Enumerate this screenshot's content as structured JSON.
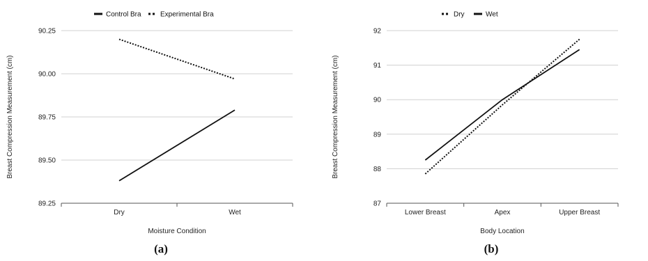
{
  "chart_data": [
    {
      "type": "line",
      "panel_label": "(a)",
      "categories": [
        "Dry",
        "Wet"
      ],
      "series": [
        {
          "name": "Control Bra",
          "values": [
            89.38,
            89.79
          ],
          "style": "solid"
        },
        {
          "name": "Experimental Bra",
          "values": [
            90.2,
            89.97
          ],
          "style": "dotted"
        }
      ],
      "xlabel": "Moisture Condition",
      "ylabel": "Breast Compression Measurement (cm)",
      "ylim": [
        89.25,
        90.25
      ],
      "yticks": [
        "89.25",
        "89.50",
        "89.75",
        "90.00",
        "90.25"
      ],
      "grid": true,
      "legend": "top"
    },
    {
      "type": "line",
      "panel_label": "(b)",
      "categories": [
        "Lower Breast",
        "Apex",
        "Upper Breast"
      ],
      "series": [
        {
          "name": "Dry",
          "values": [
            87.85,
            89.85,
            91.75
          ],
          "style": "dotted"
        },
        {
          "name": "Wet",
          "values": [
            88.25,
            90.0,
            91.45
          ],
          "style": "solid"
        }
      ],
      "xlabel": "Body Location",
      "ylabel": "Breast Compression Measurement (cm)",
      "ylim": [
        87,
        92
      ],
      "yticks": [
        "87",
        "88",
        "89",
        "90",
        "91",
        "92"
      ],
      "grid": true,
      "legend": "top"
    }
  ],
  "colors": {
    "line": "#111111",
    "grid": "#d0d0d0",
    "axis": "#555555"
  }
}
